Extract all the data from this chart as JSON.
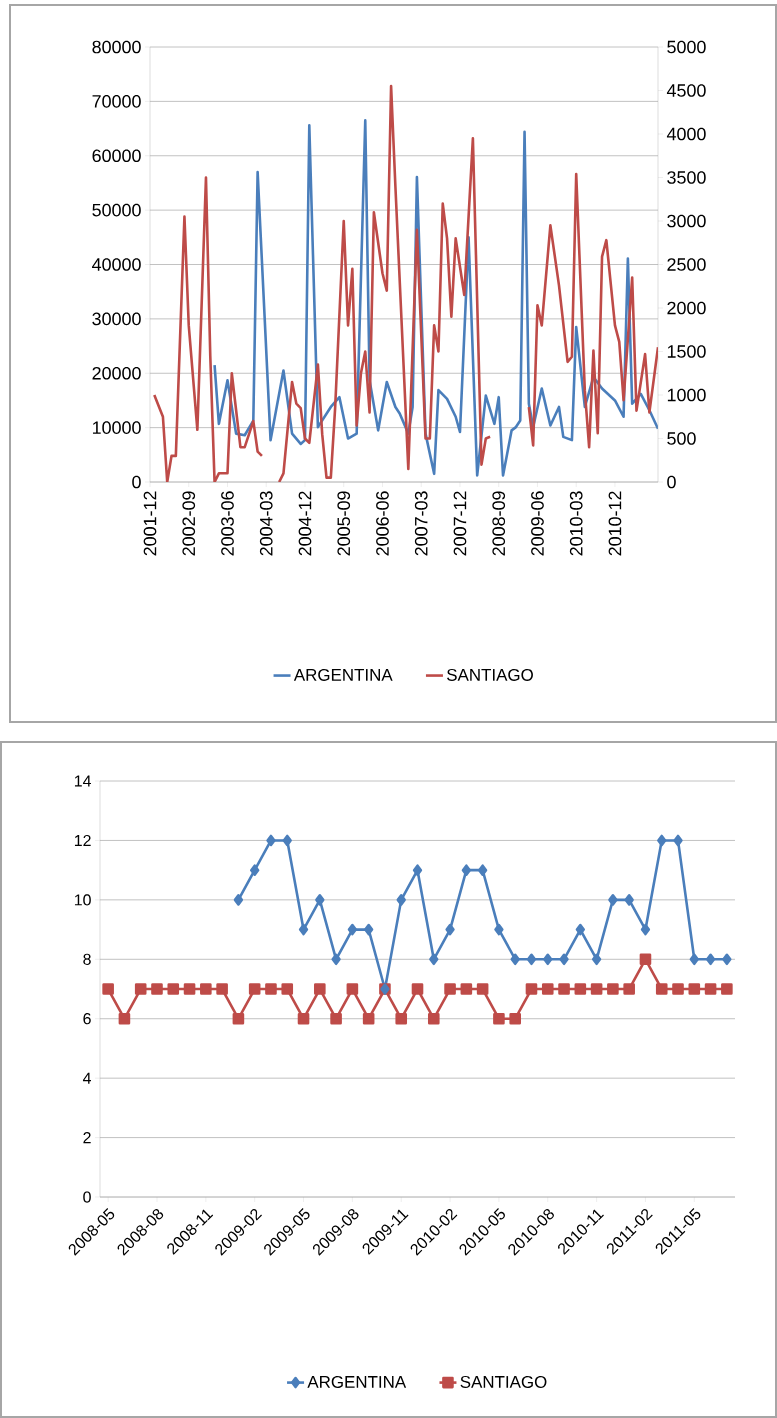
{
  "chart_data": [
    {
      "type": "line",
      "xlim": [
        "2001-12",
        "2011-10"
      ],
      "xticks": [
        {
          "value": "2001-12",
          "label": "2001-12"
        },
        {
          "value": "2002-09",
          "label": "2002-09"
        },
        {
          "value": "2003-06",
          "label": "2003-06"
        },
        {
          "value": "2004-03",
          "label": "2004-03"
        },
        {
          "value": "2004-12",
          "label": "2004-12"
        },
        {
          "value": "2005-09",
          "label": "2005-09"
        },
        {
          "value": "2006-06",
          "label": "2006-06"
        },
        {
          "value": "2007-03",
          "label": "2007-03"
        },
        {
          "value": "2007-12",
          "label": "2007-12"
        },
        {
          "value": "2008-09",
          "label": "2008-09"
        },
        {
          "value": "2009-06",
          "label": "2009-06"
        },
        {
          "value": "2010-03",
          "label": "2010-03"
        },
        {
          "value": "2010-12",
          "label": "2010-12"
        }
      ],
      "ylim": [
        0,
        80000
      ],
      "yticks": [
        0,
        10000,
        20000,
        30000,
        40000,
        50000,
        60000,
        70000,
        80000
      ],
      "y2lim": [
        0,
        5000
      ],
      "y2ticks": [
        0,
        500,
        1000,
        1500,
        2000,
        2500,
        3000,
        3500,
        4000,
        4500,
        5000
      ],
      "grid": "y",
      "legend": "bottom",
      "marker": "none",
      "line_style": "solid",
      "series": [
        {
          "name": "ARGENTINA",
          "color": "#4a7ebb",
          "x": [
            "2003-03",
            "2003-04",
            "2003-06",
            "2003-08",
            "2003-10",
            "2003-12",
            "2004-01",
            "2004-04",
            "2004-07",
            "2004-09",
            "2004-11",
            "2004-12",
            "2005-01",
            "2005-03",
            "2005-06",
            "2005-08",
            "2005-10",
            "2005-12",
            "2006-02",
            "2006-03",
            "2006-05",
            "2006-07",
            "2006-09",
            "2006-10",
            "2006-12",
            "2007-01",
            "2007-02",
            "2007-04",
            "2007-06",
            "2007-07",
            "2007-09",
            "2007-11",
            "2007-12",
            "2008-02",
            "2008-04",
            "2008-06",
            "2008-08",
            "2008-09",
            "2008-10",
            "2008-12",
            "2009-01",
            "2009-02",
            "2009-03",
            "2009-04",
            "2009-05",
            "2009-07",
            "2009-09",
            "2009-11",
            "2009-12",
            "2010-02",
            "2010-03",
            "2010-05",
            "2010-07",
            "2010-09",
            "2010-12",
            "2011-02",
            "2011-03",
            "2011-04",
            "2011-06",
            "2011-08",
            "2011-10"
          ],
          "values": [
            21500,
            10700,
            18700,
            8900,
            8600,
            11300,
            57000,
            7700,
            20500,
            8900,
            7000,
            7700,
            65600,
            10100,
            13800,
            15600,
            8000,
            8900,
            66500,
            18700,
            9500,
            18400,
            13800,
            12600,
            8900,
            13800,
            56100,
            8900,
            1500,
            16900,
            15300,
            12000,
            9200,
            45000,
            1200,
            15900,
            10700,
            15600,
            1200,
            9500,
            10100,
            11300,
            64400,
            14400,
            10100,
            17200,
            10400,
            13800,
            8300,
            7700,
            28500,
            13800,
            19300,
            17200,
            15000,
            12000,
            41100,
            14400,
            16200,
            13200,
            9800
          ]
        },
        {
          "name": "SANTIAGO",
          "color": "#be4b48",
          "axis": "y2",
          "x": [
            "2002-01",
            "2002-03",
            "2002-04",
            "2002-05",
            "2002-06",
            "2002-08",
            "2002-09",
            "2002-11",
            "2003-01",
            "2003-02",
            "2003-03",
            "2003-04",
            "2003-06",
            "2003-07",
            "2003-09",
            "2003-10",
            "2003-12",
            "2004-01",
            "2004-02",
            "2004-04",
            "2004-06",
            "2004-07",
            "2004-09",
            "2004-10",
            "2004-11",
            "2004-12",
            "2005-01",
            "2005-03",
            "2005-04",
            "2005-05",
            "2005-06",
            "2005-07",
            "2005-09",
            "2005-10",
            "2005-11",
            "2005-12",
            "2006-01",
            "2006-02",
            "2006-03",
            "2006-04",
            "2006-06",
            "2006-07",
            "2006-08",
            "2006-09",
            "2006-12",
            "2007-02",
            "2007-04",
            "2007-05",
            "2007-06",
            "2007-07",
            "2007-08",
            "2007-09",
            "2007-10",
            "2007-11",
            "2008-01",
            "2008-03",
            "2008-05",
            "2008-06",
            "2008-07",
            "2008-11",
            "2009-04",
            "2009-05",
            "2009-06",
            "2009-07",
            "2009-09",
            "2009-11",
            "2010-01",
            "2010-02",
            "2010-03",
            "2010-05",
            "2010-06",
            "2010-07",
            "2010-08",
            "2010-09",
            "2010-10",
            "2010-12",
            "2011-01",
            "2011-02",
            "2011-04",
            "2011-05",
            "2011-07",
            "2011-08",
            "2011-10"
          ],
          "values": [
            1000,
            750,
            0,
            300,
            300,
            3050,
            1800,
            600,
            3500,
            1450,
            0,
            100,
            100,
            1250,
            400,
            400,
            700,
            350,
            300,
            null,
            0,
            100,
            1150,
            900,
            850,
            500,
            450,
            1350,
            550,
            50,
            50,
            850,
            3000,
            1800,
            2450,
            650,
            1250,
            1500,
            800,
            3100,
            2400,
            2200,
            4550,
            3400,
            150,
            2900,
            500,
            500,
            1800,
            1500,
            3200,
            2800,
            1900,
            2800,
            2150,
            3950,
            200,
            500,
            520,
            null,
            860,
            420,
            2030,
            1800,
            2950,
            2260,
            1380,
            1440,
            3540,
            1050,
            400,
            1510,
            560,
            2590,
            2780,
            1800,
            1610,
            940,
            2350,
            820,
            1470,
            800,
            1550
          ]
        }
      ]
    },
    {
      "type": "line",
      "categories": [
        "2008-05",
        null,
        null,
        "2008-08",
        null,
        null,
        "2008-11",
        null,
        null,
        "2009-02",
        null,
        null,
        "2009-05",
        null,
        null,
        "2009-08",
        null,
        null,
        "2009-11",
        null,
        null,
        "2010-02",
        null,
        null,
        "2010-05",
        null,
        null,
        "2010-08",
        null,
        null,
        "2010-11",
        null,
        null,
        "2011-02",
        null,
        null,
        "2011-05",
        null,
        null
      ],
      "ylim": [
        0,
        14
      ],
      "yticks": [
        0,
        2,
        4,
        6,
        8,
        10,
        12,
        14
      ],
      "grid": "y",
      "legend": "bottom",
      "line_style": "solid",
      "series": [
        {
          "name": "ARGENTINA",
          "color": "#4a7ebb",
          "marker": "diamond",
          "values": [
            null,
            null,
            null,
            null,
            null,
            null,
            null,
            null,
            10,
            11,
            12,
            12,
            9,
            10,
            8,
            9,
            9,
            7,
            10,
            11,
            8,
            9,
            11,
            11,
            9,
            8,
            8,
            8,
            8,
            9,
            8,
            10,
            10,
            9,
            12,
            12,
            8,
            8,
            8
          ]
        },
        {
          "name": "SANTIAGO",
          "color": "#be4b48",
          "marker": "square",
          "values": [
            7,
            6,
            7,
            7,
            7,
            7,
            7,
            7,
            6,
            7,
            7,
            7,
            6,
            7,
            6,
            7,
            6,
            7,
            6,
            7,
            6,
            7,
            7,
            7,
            6,
            6,
            7,
            7,
            7,
            7,
            7,
            7,
            7,
            8,
            7,
            7,
            7,
            7,
            7
          ]
        }
      ]
    }
  ]
}
